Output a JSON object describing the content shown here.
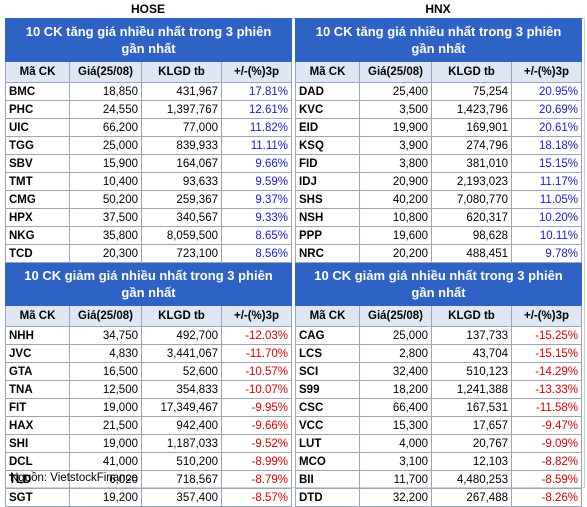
{
  "source": "Nguồn: VietstockFinance",
  "hose": {
    "title": "HOSE",
    "gainers_title": "10 CK tăng giá nhiều nhất trong 3 phiên gần nhất",
    "losers_title": "10 CK giảm giá nhiều nhất trong 3 phiên gần nhất",
    "headers": [
      "Mã CK",
      "Giá(25/08)",
      "KLGD tb",
      "+/-(%)3p"
    ],
    "gainers": [
      {
        "sym": "BMC",
        "price": "18,850",
        "vol": "431,967",
        "chg": "17.81%"
      },
      {
        "sym": "PHC",
        "price": "24,550",
        "vol": "1,397,767",
        "chg": "12.61%"
      },
      {
        "sym": "UIC",
        "price": "66,200",
        "vol": "77,000",
        "chg": "11.82%"
      },
      {
        "sym": "TGG",
        "price": "25,000",
        "vol": "839,933",
        "chg": "11.11%"
      },
      {
        "sym": "SBV",
        "price": "15,900",
        "vol": "164,067",
        "chg": "9.66%"
      },
      {
        "sym": "TMT",
        "price": "10,400",
        "vol": "93,633",
        "chg": "9.59%"
      },
      {
        "sym": "CMG",
        "price": "50,200",
        "vol": "259,367",
        "chg": "9.37%"
      },
      {
        "sym": "HPX",
        "price": "37,500",
        "vol": "340,567",
        "chg": "9.33%"
      },
      {
        "sym": "NKG",
        "price": "35,800",
        "vol": "8,059,500",
        "chg": "8.65%"
      },
      {
        "sym": "TCD",
        "price": "20,300",
        "vol": "723,100",
        "chg": "8.56%"
      }
    ],
    "losers": [
      {
        "sym": "NHH",
        "price": "34,750",
        "vol": "492,700",
        "chg": "-12.03%"
      },
      {
        "sym": "JVC",
        "price": "4,830",
        "vol": "3,441,067",
        "chg": "-11.70%"
      },
      {
        "sym": "GTA",
        "price": "16,500",
        "vol": "52,600",
        "chg": "-10.57%"
      },
      {
        "sym": "TNA",
        "price": "12,500",
        "vol": "354,833",
        "chg": "-10.07%"
      },
      {
        "sym": "FIT",
        "price": "19,000",
        "vol": "17,349,467",
        "chg": "-9.95%"
      },
      {
        "sym": "HAX",
        "price": "21,500",
        "vol": "942,400",
        "chg": "-9.66%"
      },
      {
        "sym": "SHI",
        "price": "19,000",
        "vol": "1,187,033",
        "chg": "-9.52%"
      },
      {
        "sym": "DCL",
        "price": "41,000",
        "vol": "510,200",
        "chg": "-8.99%"
      },
      {
        "sym": "TLD",
        "price": "6,020",
        "vol": "718,567",
        "chg": "-8.79%"
      },
      {
        "sym": "SGT",
        "price": "19,200",
        "vol": "357,400",
        "chg": "-8.57%"
      }
    ]
  },
  "hnx": {
    "title": "HNX",
    "gainers_title": "10 CK tăng giá nhiều nhất trong 3 phiên gần nhất",
    "losers_title": "10 CK giảm giá nhiều nhất trong 3 phiên gần nhất",
    "headers": [
      "Mã CK",
      "Giá(25/08)",
      "KLGD tb",
      "+/-(%)3p"
    ],
    "gainers": [
      {
        "sym": "DAD",
        "price": "25,400",
        "vol": "75,254",
        "chg": "20.95%"
      },
      {
        "sym": "KVC",
        "price": "3,500",
        "vol": "1,423,796",
        "chg": "20.69%"
      },
      {
        "sym": "EID",
        "price": "19,900",
        "vol": "169,901",
        "chg": "20.61%"
      },
      {
        "sym": "KSQ",
        "price": "3,900",
        "vol": "274,796",
        "chg": "18.18%"
      },
      {
        "sym": "FID",
        "price": "3,800",
        "vol": "381,010",
        "chg": "15.15%"
      },
      {
        "sym": "IDJ",
        "price": "20,900",
        "vol": "2,193,023",
        "chg": "11.17%"
      },
      {
        "sym": "SHS",
        "price": "40,200",
        "vol": "7,080,770",
        "chg": "11.05%"
      },
      {
        "sym": "NSH",
        "price": "10,800",
        "vol": "620,317",
        "chg": "10.20%"
      },
      {
        "sym": "PPP",
        "price": "19,600",
        "vol": "98,628",
        "chg": "10.11%"
      },
      {
        "sym": "NRC",
        "price": "20,200",
        "vol": "488,451",
        "chg": "9.78%"
      }
    ],
    "losers": [
      {
        "sym": "CAG",
        "price": "25,000",
        "vol": "137,733",
        "chg": "-15.25%"
      },
      {
        "sym": "LCS",
        "price": "2,800",
        "vol": "43,704",
        "chg": "-15.15%"
      },
      {
        "sym": "SCI",
        "price": "32,400",
        "vol": "510,123",
        "chg": "-14.29%"
      },
      {
        "sym": "S99",
        "price": "18,200",
        "vol": "1,241,388",
        "chg": "-13.33%"
      },
      {
        "sym": "CSC",
        "price": "66,400",
        "vol": "167,531",
        "chg": "-11.58%"
      },
      {
        "sym": "VCC",
        "price": "15,300",
        "vol": "17,657",
        "chg": "-9.47%"
      },
      {
        "sym": "LUT",
        "price": "4,000",
        "vol": "20,767",
        "chg": "-9.09%"
      },
      {
        "sym": "MCO",
        "price": "3,100",
        "vol": "12,103",
        "chg": "-8.82%"
      },
      {
        "sym": "BII",
        "price": "11,700",
        "vol": "4,480,253",
        "chg": "-8.59%"
      },
      {
        "sym": "DTD",
        "price": "32,200",
        "vol": "267,488",
        "chg": "-8.26%"
      }
    ]
  },
  "colors": {
    "section_bg": "#2e62c4",
    "header_bg": "#dfe7f4",
    "gain_text": "#1a1ad6",
    "loss_text": "#e00000",
    "grid": "#9aa6b8"
  }
}
